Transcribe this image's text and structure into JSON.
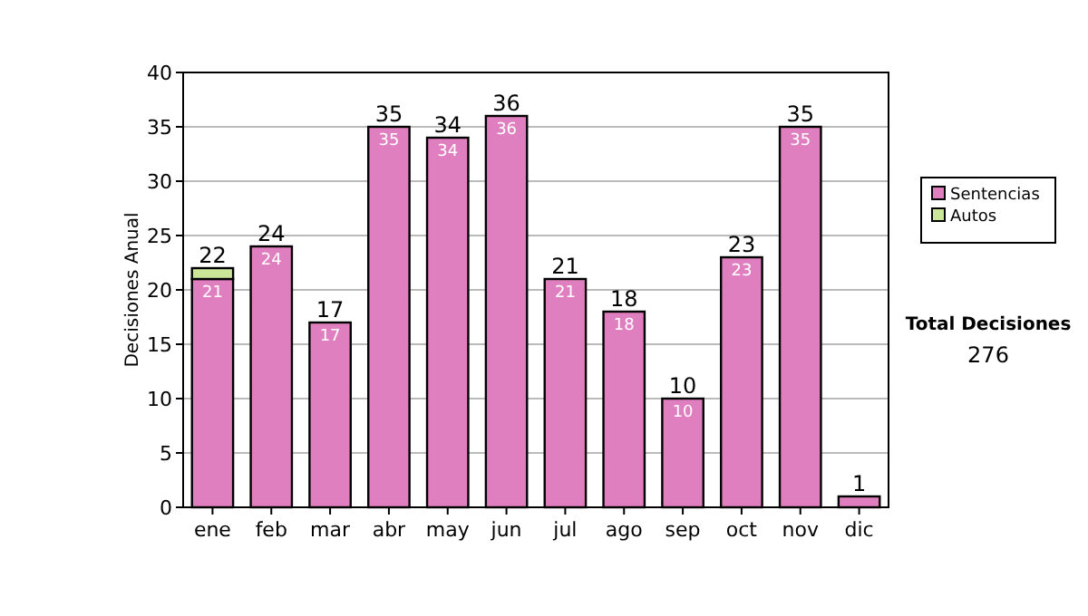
{
  "chart_data": {
    "type": "bar",
    "stacked": true,
    "ylabel": "Decisiones Anual",
    "categories": [
      "ene",
      "feb",
      "mar",
      "abr",
      "may",
      "jun",
      "jul",
      "ago",
      "sep",
      "oct",
      "nov",
      "dic"
    ],
    "series": [
      {
        "name": "Sentencias",
        "color": "#e07fbf",
        "values": [
          21,
          24,
          17,
          35,
          34,
          36,
          21,
          18,
          10,
          23,
          35,
          1
        ],
        "value_labels": [
          "21",
          "24",
          "17",
          "35",
          "34",
          "36",
          "21",
          "18",
          "10",
          "23",
          "35",
          null
        ]
      },
      {
        "name": "Autos",
        "color": "#cce699",
        "values": [
          1,
          0,
          0,
          0,
          0,
          0,
          0,
          0,
          0,
          0,
          0,
          0
        ]
      }
    ],
    "totals": [
      "22",
      "24",
      "17",
      "35",
      "34",
      "36",
      "21",
      "18",
      "10",
      "23",
      "35",
      "1"
    ],
    "ylim": [
      0,
      40
    ],
    "yticks": [
      0,
      5,
      10,
      15,
      20,
      25,
      30,
      35,
      40
    ],
    "grid": "y",
    "legend": "right",
    "annotations": [
      "Total Decisiones",
      "276"
    ]
  }
}
